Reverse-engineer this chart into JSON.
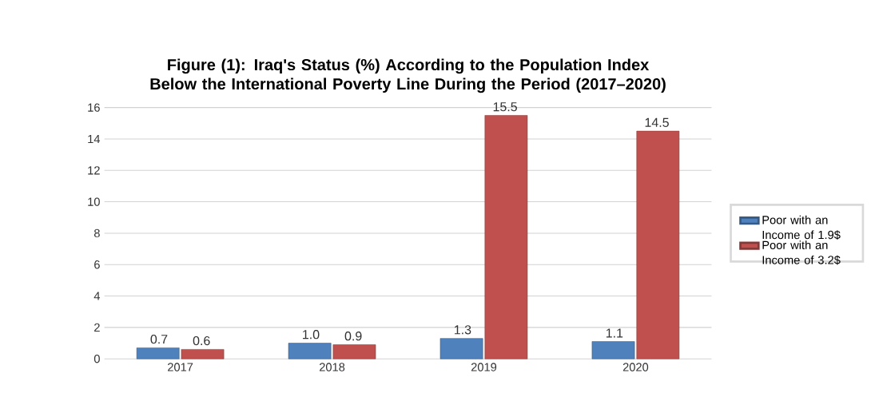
{
  "chart_data": {
    "type": "bar",
    "title": "Figure (1): Iraq's Status (%) According to the Population Index Below the International Poverty Line During the Period (2017–2020)",
    "categories": [
      "2017",
      "2018",
      "2019",
      "2020"
    ],
    "series": [
      {
        "name": "Poor with an Income of 1.9$",
        "color": "#4f81bd",
        "values": [
          0.7,
          1.0,
          1.3,
          1.1
        ],
        "value_labels": [
          "0.7",
          "1.0",
          "1.3",
          "1.1"
        ]
      },
      {
        "name": "Poor with an Income of 3.2$",
        "color": "#c0504d",
        "values": [
          0.6,
          0.9,
          15.5,
          14.5
        ],
        "value_labels": [
          "0.6",
          "0.9",
          "15.5",
          "14.5"
        ]
      }
    ],
    "ylim": [
      0,
      16
    ],
    "yticks": [
      0,
      2,
      4,
      6,
      8,
      10,
      12,
      14,
      16
    ],
    "grid": "y",
    "legend": "right"
  }
}
